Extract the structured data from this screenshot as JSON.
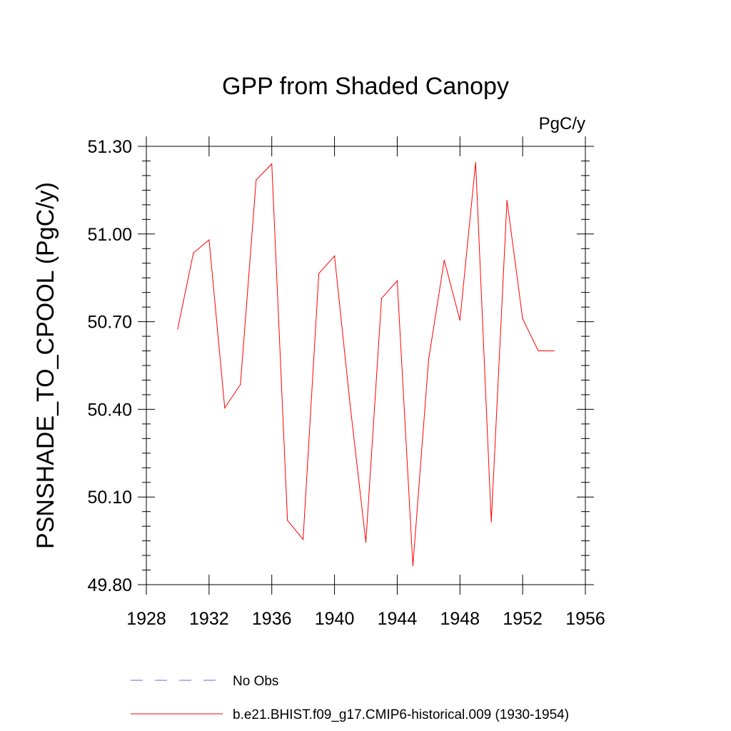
{
  "chart_data": {
    "type": "line",
    "title": "GPP from Shaded Canopy",
    "units": "PgC/y",
    "ylabel": "PSNSHADE_TO_CPOOL  (PgC/y)",
    "xlabel": "",
    "xlim": [
      1928,
      1956
    ],
    "ylim": [
      49.8,
      51.3
    ],
    "x_ticks": [
      "1928",
      "1932",
      "1936",
      "1940",
      "1944",
      "1948",
      "1952",
      "1956"
    ],
    "y_ticks": [
      "49.80",
      "50.10",
      "50.40",
      "50.70",
      "51.00",
      "51.30"
    ],
    "x_tick_values": [
      1928,
      1932,
      1936,
      1940,
      1944,
      1948,
      1952,
      1956
    ],
    "y_tick_values": [
      49.8,
      50.1,
      50.4,
      50.7,
      51.0,
      51.3
    ],
    "grid": false,
    "series": [
      {
        "name": "b.e21.BHIST.f09_g17.CMIP6-historical.009 (1930-1954)",
        "color": "#ff0000",
        "x": [
          1930,
          1931,
          1932,
          1933,
          1934,
          1935,
          1936,
          1937,
          1938,
          1939,
          1940,
          1941,
          1942,
          1943,
          1944,
          1945,
          1946,
          1947,
          1948,
          1949,
          1950,
          1951,
          1952,
          1953,
          1954
        ],
        "y": [
          50.675,
          50.935,
          50.98,
          50.405,
          50.485,
          51.185,
          51.24,
          50.02,
          49.955,
          50.865,
          50.925,
          50.415,
          49.945,
          50.78,
          50.84,
          49.865,
          50.57,
          50.91,
          50.705,
          51.245,
          50.015,
          51.115,
          50.71,
          50.6,
          50.6
        ]
      }
    ],
    "legend": [
      {
        "label": "No Obs",
        "color": "#6a6ad0",
        "style": "dashed"
      },
      {
        "label": "b.e21.BHIST.f09_g17.CMIP6-historical.009 (1930-1954)",
        "color": "#ff0000",
        "style": "solid"
      }
    ],
    "legend_placement": "bottom"
  }
}
